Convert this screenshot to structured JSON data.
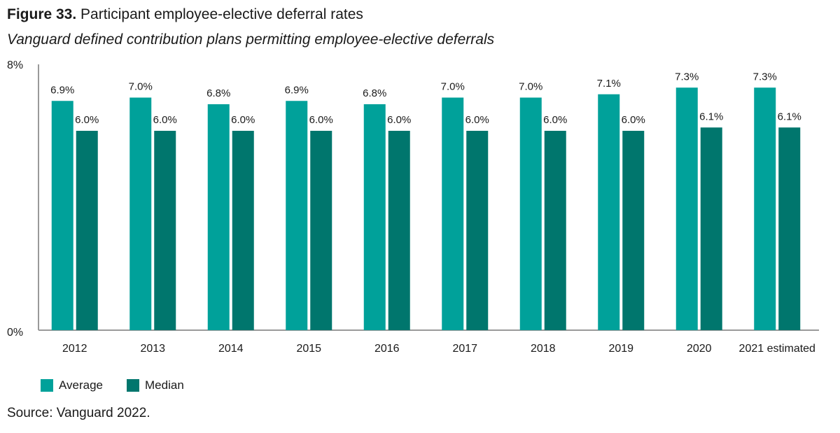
{
  "figure": {
    "number": "Figure 33.",
    "title": "Participant employee-elective deferral rates",
    "subtitle": "Vanguard defined contribution plans permitting employee-elective deferrals",
    "source": "Source: Vanguard 2022."
  },
  "colors": {
    "average": "#00a19a",
    "median": "#00766d",
    "axis": "#9a9a9a"
  },
  "chart_data": {
    "type": "bar",
    "categories": [
      "2012",
      "2013",
      "2014",
      "2015",
      "2016",
      "2017",
      "2018",
      "2019",
      "2020",
      "2021 estimated"
    ],
    "series": [
      {
        "name": "Average",
        "values": [
          6.9,
          7.0,
          6.8,
          6.9,
          6.8,
          7.0,
          7.0,
          7.1,
          7.3,
          7.3
        ],
        "labels": [
          "6.9%",
          "7.0%",
          "6.8%",
          "6.9%",
          "6.8%",
          "7.0%",
          "7.0%",
          "7.1%",
          "7.3%",
          "7.3%"
        ]
      },
      {
        "name": "Median",
        "values": [
          6.0,
          6.0,
          6.0,
          6.0,
          6.0,
          6.0,
          6.0,
          6.0,
          6.1,
          6.1
        ],
        "labels": [
          "6.0%",
          "6.0%",
          "6.0%",
          "6.0%",
          "6.0%",
          "6.0%",
          "6.0%",
          "6.0%",
          "6.1%",
          "6.1%"
        ]
      }
    ],
    "ylim": [
      0,
      8
    ],
    "yticks": [
      "0%",
      "8%"
    ],
    "grid": false,
    "legend": "bottom-left"
  }
}
